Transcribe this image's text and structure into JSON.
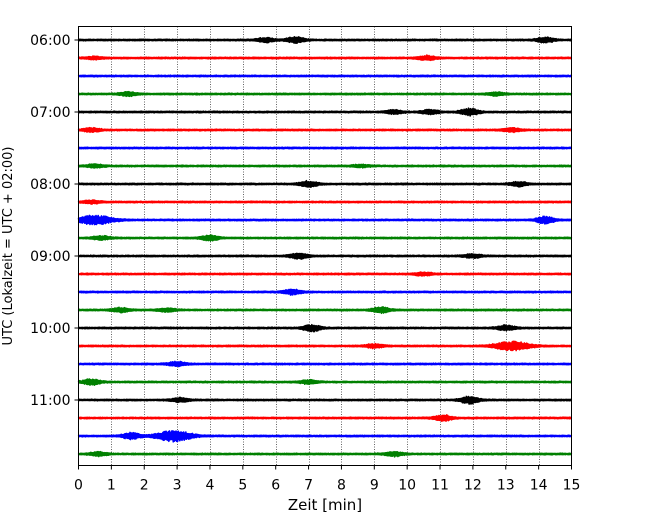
{
  "chart_data": {
    "type": "line",
    "subtype": "helicorder",
    "xlabel": "Zeit  [min]",
    "ylabel": "UTC (Lokalzeit = UTC + 02:00)",
    "xlim": [
      0,
      15
    ],
    "xticks": [
      0,
      1,
      2,
      3,
      4,
      5,
      6,
      7,
      8,
      9,
      10,
      11,
      12,
      13,
      14,
      15
    ],
    "x_grid": true,
    "hour_ticks": [
      "06:00",
      "07:00",
      "08:00",
      "09:00",
      "10:00",
      "11:00"
    ],
    "trace_interval_minutes": 15,
    "trace_colors": [
      "#000000",
      "#ff0000",
      "#0000ff",
      "#008000"
    ],
    "series": [
      {
        "start": "06:00",
        "color": "#000000",
        "events": [
          {
            "t": 5.7,
            "amp": 0.35
          },
          {
            "t": 6.6,
            "amp": 0.5
          },
          {
            "t": 14.2,
            "amp": 0.4
          }
        ]
      },
      {
        "start": "06:15",
        "color": "#ff0000",
        "events": [
          {
            "t": 10.6,
            "amp": 0.35
          },
          {
            "t": 0.5,
            "amp": 0.2
          }
        ]
      },
      {
        "start": "06:30",
        "color": "#0000ff",
        "events": []
      },
      {
        "start": "06:45",
        "color": "#008000",
        "events": [
          {
            "t": 1.5,
            "amp": 0.3
          },
          {
            "t": 12.7,
            "amp": 0.25
          }
        ]
      },
      {
        "start": "07:00",
        "color": "#000000",
        "events": [
          {
            "t": 11.9,
            "amp": 0.55
          },
          {
            "t": 10.7,
            "amp": 0.35
          },
          {
            "t": 9.6,
            "amp": 0.3
          }
        ]
      },
      {
        "start": "07:15",
        "color": "#ff0000",
        "events": [
          {
            "t": 0.4,
            "amp": 0.3
          },
          {
            "t": 13.2,
            "amp": 0.3
          }
        ]
      },
      {
        "start": "07:30",
        "color": "#0000ff",
        "events": []
      },
      {
        "start": "07:45",
        "color": "#008000",
        "events": [
          {
            "t": 0.5,
            "amp": 0.25
          },
          {
            "t": 8.6,
            "amp": 0.2
          }
        ]
      },
      {
        "start": "08:00",
        "color": "#000000",
        "events": [
          {
            "t": 7.0,
            "amp": 0.45
          },
          {
            "t": 13.4,
            "amp": 0.35
          }
        ]
      },
      {
        "start": "08:15",
        "color": "#ff0000",
        "events": [
          {
            "t": 0.4,
            "amp": 0.25
          }
        ]
      },
      {
        "start": "08:30",
        "color": "#0000ff",
        "events": [
          {
            "t": 0.5,
            "amp": 0.7
          },
          {
            "t": 14.2,
            "amp": 0.55
          }
        ]
      },
      {
        "start": "08:45",
        "color": "#008000",
        "events": [
          {
            "t": 4.0,
            "amp": 0.4
          },
          {
            "t": 0.7,
            "amp": 0.3
          }
        ]
      },
      {
        "start": "09:00",
        "color": "#000000",
        "events": [
          {
            "t": 6.7,
            "amp": 0.45
          },
          {
            "t": 12.0,
            "amp": 0.3
          }
        ]
      },
      {
        "start": "09:15",
        "color": "#ff0000",
        "events": [
          {
            "t": 10.5,
            "amp": 0.25
          }
        ]
      },
      {
        "start": "09:30",
        "color": "#0000ff",
        "events": [
          {
            "t": 6.5,
            "amp": 0.4
          }
        ]
      },
      {
        "start": "09:45",
        "color": "#008000",
        "events": [
          {
            "t": 1.3,
            "amp": 0.35
          },
          {
            "t": 9.2,
            "amp": 0.45
          },
          {
            "t": 2.7,
            "amp": 0.25
          }
        ]
      },
      {
        "start": "10:00",
        "color": "#000000",
        "events": [
          {
            "t": 7.1,
            "amp": 0.5
          },
          {
            "t": 13.0,
            "amp": 0.4
          }
        ]
      },
      {
        "start": "10:15",
        "color": "#ff0000",
        "events": [
          {
            "t": 13.2,
            "amp": 0.7
          },
          {
            "t": 9.0,
            "amp": 0.3
          }
        ]
      },
      {
        "start": "10:30",
        "color": "#0000ff",
        "events": [
          {
            "t": 3.0,
            "amp": 0.35
          }
        ]
      },
      {
        "start": "10:45",
        "color": "#008000",
        "events": [
          {
            "t": 0.4,
            "amp": 0.45
          },
          {
            "t": 7.0,
            "amp": 0.3
          }
        ]
      },
      {
        "start": "11:00",
        "color": "#000000",
        "events": [
          {
            "t": 11.9,
            "amp": 0.6
          },
          {
            "t": 3.1,
            "amp": 0.3
          }
        ]
      },
      {
        "start": "11:15",
        "color": "#ff0000",
        "events": [
          {
            "t": 11.1,
            "amp": 0.45
          }
        ]
      },
      {
        "start": "11:30",
        "color": "#0000ff",
        "events": [
          {
            "t": 2.9,
            "amp": 0.85
          },
          {
            "t": 1.6,
            "amp": 0.5
          }
        ]
      },
      {
        "start": "11:45",
        "color": "#008000",
        "events": [
          {
            "t": 0.6,
            "amp": 0.3
          },
          {
            "t": 9.6,
            "amp": 0.35
          }
        ]
      }
    ]
  }
}
